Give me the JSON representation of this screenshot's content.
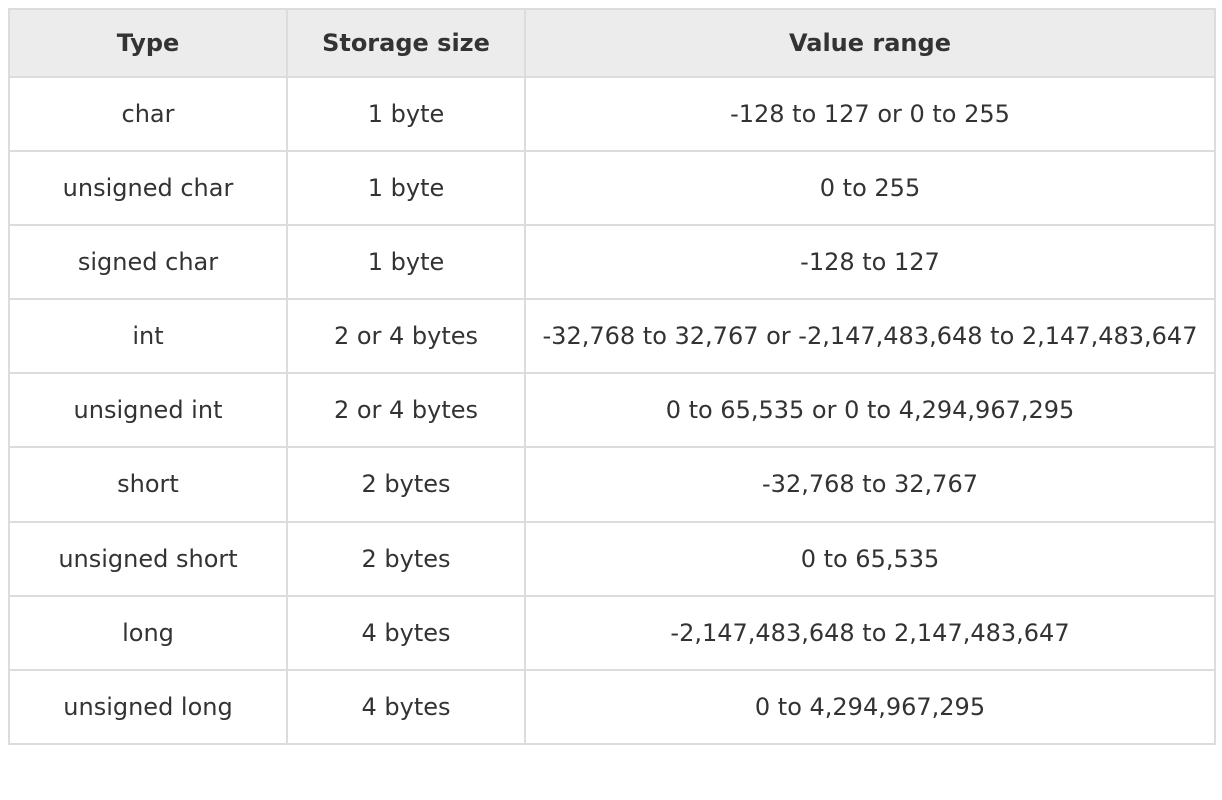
{
  "table": {
    "columns": [
      "Type",
      "Storage size",
      "Value range"
    ],
    "rows": [
      {
        "type": "char",
        "storage": "1 byte",
        "range": "-128 to 127 or 0 to 255"
      },
      {
        "type": "unsigned char",
        "storage": "1 byte",
        "range": "0 to 255"
      },
      {
        "type": "signed char",
        "storage": "1 byte",
        "range": "-128 to 127"
      },
      {
        "type": "int",
        "storage": "2 or 4 bytes",
        "range": "-32,768 to 32,767 or -2,147,483,648 to 2,147,483,647"
      },
      {
        "type": "unsigned int",
        "storage": "2 or 4 bytes",
        "range": "0 to 65,535 or 0 to 4,294,967,295"
      },
      {
        "type": "short",
        "storage": "2 bytes",
        "range": "-32,768 to 32,767"
      },
      {
        "type": "unsigned short",
        "storage": "2 bytes",
        "range": "0 to 65,535"
      },
      {
        "type": "long",
        "storage": "4 bytes",
        "range": "-2,147,483,648 to 2,147,483,647"
      },
      {
        "type": "unsigned long",
        "storage": "4 bytes",
        "range": "0 to 4,294,967,295"
      }
    ]
  },
  "colors": {
    "header_bg": "#ececec",
    "border": "#dcdcdc",
    "text": "#333333",
    "page_bg": "#ffffff"
  }
}
